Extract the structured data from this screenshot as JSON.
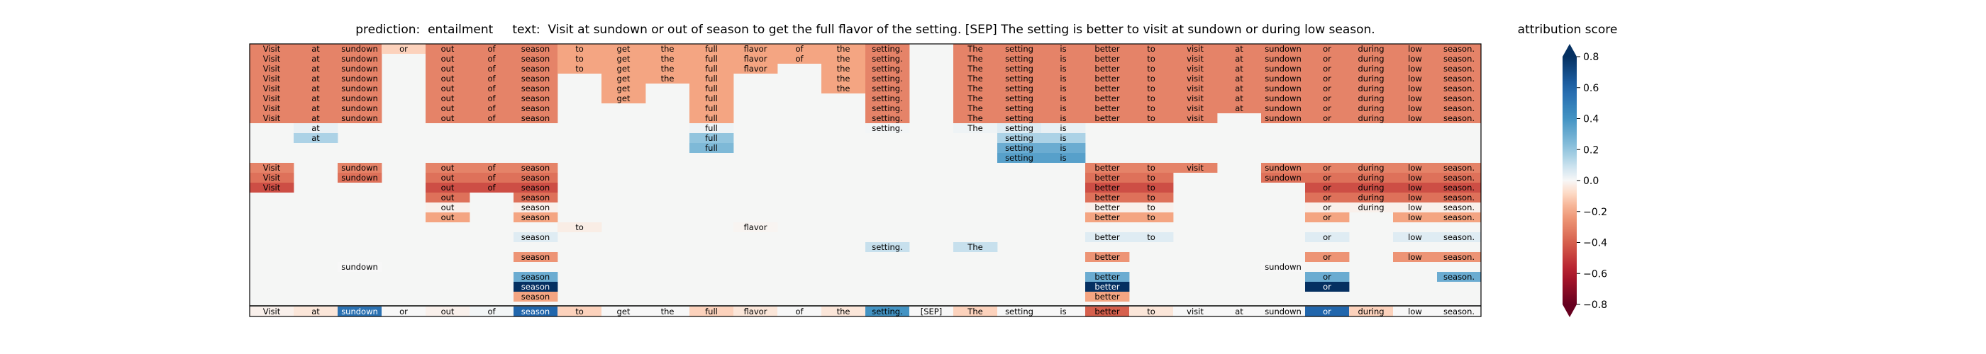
{
  "title_prefix": "prediction:  ",
  "prediction": "entailment",
  "text_prefix": "text:  ",
  "text": "Visit at sundown or out of season to get the full flavor of the setting. [SEP] The setting is better to visit at sundown or during low season.",
  "colorbar": {
    "title": "attribution score",
    "ticks": [
      "0.8",
      "0.6",
      "0.4",
      "0.2",
      "0.0",
      "−0.2",
      "−0.4",
      "−0.6",
      "−0.8"
    ],
    "range": [
      -0.8,
      0.8
    ],
    "extend": "both"
  },
  "chart_data": {
    "type": "heatmap",
    "grid": false,
    "tokens": [
      "Visit",
      "at",
      "sundown",
      "or",
      "out",
      "of",
      "season",
      "to",
      "get",
      "the",
      "full",
      "flavor",
      "of",
      "the",
      "setting.",
      "[SEP]",
      "The",
      "setting",
      "is",
      "better",
      "to",
      "visit",
      "at",
      "sundown",
      "or",
      "during",
      "low",
      "season."
    ],
    "row_values": [
      [
        -0.3,
        -0.3,
        -0.3,
        -0.1,
        -0.3,
        -0.3,
        -0.3,
        -0.2,
        -0.2,
        -0.2,
        -0.2,
        -0.2,
        -0.2,
        -0.2,
        -0.3,
        null,
        -0.3,
        -0.3,
        -0.3,
        -0.3,
        -0.3,
        -0.3,
        -0.3,
        -0.3,
        -0.3,
        -0.3,
        -0.3,
        -0.3
      ],
      [
        -0.3,
        -0.3,
        -0.3,
        null,
        -0.3,
        -0.3,
        -0.3,
        -0.2,
        -0.2,
        -0.2,
        -0.2,
        -0.2,
        -0.2,
        -0.2,
        -0.3,
        null,
        -0.3,
        -0.3,
        -0.3,
        -0.3,
        -0.3,
        -0.3,
        -0.3,
        -0.3,
        -0.3,
        -0.3,
        -0.3,
        -0.3
      ],
      [
        -0.3,
        -0.3,
        -0.3,
        null,
        -0.3,
        -0.3,
        -0.3,
        -0.2,
        -0.2,
        -0.2,
        -0.2,
        -0.2,
        null,
        -0.2,
        -0.3,
        null,
        -0.3,
        -0.3,
        -0.3,
        -0.3,
        -0.3,
        -0.3,
        -0.3,
        -0.3,
        -0.3,
        -0.3,
        -0.3,
        -0.3
      ],
      [
        -0.3,
        -0.3,
        -0.3,
        null,
        -0.3,
        -0.3,
        -0.3,
        null,
        -0.2,
        -0.2,
        -0.2,
        null,
        null,
        -0.2,
        -0.3,
        null,
        -0.3,
        -0.3,
        -0.3,
        -0.3,
        -0.3,
        -0.3,
        -0.3,
        -0.3,
        -0.3,
        -0.3,
        -0.3,
        -0.3
      ],
      [
        -0.3,
        -0.3,
        -0.3,
        null,
        -0.3,
        -0.3,
        -0.3,
        null,
        -0.2,
        null,
        -0.2,
        null,
        null,
        -0.2,
        -0.3,
        null,
        -0.3,
        -0.3,
        -0.3,
        -0.3,
        -0.3,
        -0.3,
        -0.3,
        -0.3,
        -0.3,
        -0.3,
        -0.3,
        -0.3
      ],
      [
        -0.3,
        -0.3,
        -0.3,
        null,
        -0.3,
        -0.3,
        -0.3,
        null,
        -0.2,
        null,
        -0.2,
        null,
        null,
        null,
        -0.3,
        null,
        -0.3,
        -0.3,
        -0.3,
        -0.3,
        -0.3,
        -0.3,
        -0.3,
        -0.3,
        -0.3,
        -0.3,
        -0.3,
        -0.3
      ],
      [
        -0.3,
        -0.3,
        -0.3,
        null,
        -0.3,
        -0.3,
        -0.3,
        null,
        null,
        null,
        -0.2,
        null,
        null,
        null,
        -0.3,
        null,
        -0.3,
        -0.3,
        -0.3,
        -0.3,
        -0.3,
        -0.3,
        -0.3,
        -0.3,
        -0.3,
        -0.3,
        -0.3,
        -0.3
      ],
      [
        -0.3,
        -0.3,
        -0.3,
        null,
        -0.3,
        -0.3,
        -0.3,
        null,
        null,
        null,
        -0.2,
        null,
        null,
        null,
        -0.3,
        null,
        -0.3,
        -0.3,
        -0.3,
        -0.3,
        -0.3,
        -0.3,
        null,
        -0.3,
        -0.3,
        -0.3,
        -0.3,
        -0.3
      ],
      [
        null,
        0.03,
        null,
        null,
        null,
        null,
        null,
        null,
        null,
        null,
        0.02,
        null,
        null,
        null,
        0.01,
        null,
        0.02,
        0.05,
        0.03,
        null,
        null,
        null,
        null,
        null,
        null,
        null,
        null,
        null
      ],
      [
        null,
        0.15,
        null,
        null,
        null,
        null,
        null,
        null,
        null,
        null,
        0.2,
        null,
        null,
        null,
        null,
        null,
        null,
        0.15,
        0.15,
        null,
        null,
        null,
        null,
        null,
        null,
        null,
        null,
        null
      ],
      [
        null,
        null,
        null,
        null,
        null,
        null,
        null,
        null,
        null,
        null,
        0.25,
        null,
        null,
        null,
        null,
        null,
        null,
        0.3,
        0.3,
        null,
        null,
        null,
        null,
        null,
        null,
        null,
        null,
        null
      ],
      [
        null,
        null,
        null,
        null,
        null,
        null,
        null,
        null,
        null,
        null,
        null,
        null,
        null,
        null,
        null,
        null,
        null,
        0.35,
        0.35,
        null,
        null,
        null,
        null,
        null,
        null,
        null,
        null,
        null
      ],
      [
        -0.3,
        null,
        -0.3,
        null,
        -0.3,
        -0.3,
        -0.3,
        null,
        null,
        null,
        null,
        null,
        null,
        null,
        null,
        null,
        null,
        null,
        null,
        -0.3,
        -0.3,
        -0.3,
        null,
        -0.3,
        -0.3,
        -0.3,
        -0.3,
        -0.3
      ],
      [
        -0.35,
        null,
        -0.35,
        null,
        -0.35,
        -0.35,
        -0.35,
        null,
        null,
        null,
        null,
        null,
        null,
        null,
        null,
        null,
        null,
        null,
        null,
        -0.35,
        -0.35,
        null,
        null,
        -0.35,
        -0.35,
        -0.35,
        -0.35,
        -0.35
      ],
      [
        -0.45,
        null,
        null,
        null,
        -0.45,
        -0.45,
        -0.45,
        null,
        null,
        null,
        null,
        null,
        null,
        null,
        null,
        null,
        null,
        null,
        null,
        -0.45,
        -0.45,
        null,
        null,
        null,
        -0.45,
        -0.45,
        -0.45,
        -0.45
      ],
      [
        null,
        null,
        null,
        null,
        -0.35,
        null,
        -0.35,
        null,
        null,
        null,
        null,
        null,
        null,
        null,
        null,
        null,
        null,
        null,
        null,
        -0.35,
        -0.35,
        null,
        null,
        null,
        -0.35,
        -0.35,
        -0.35,
        -0.35
      ],
      [
        null,
        null,
        null,
        null,
        -0.02,
        null,
        -0.02,
        null,
        null,
        null,
        null,
        null,
        null,
        null,
        null,
        null,
        null,
        null,
        null,
        -0.02,
        -0.02,
        null,
        null,
        null,
        -0.02,
        -0.02,
        -0.02,
        -0.02
      ],
      [
        null,
        null,
        null,
        null,
        -0.2,
        null,
        -0.2,
        null,
        null,
        null,
        null,
        null,
        null,
        null,
        null,
        null,
        null,
        null,
        null,
        -0.2,
        -0.2,
        null,
        null,
        null,
        -0.2,
        null,
        -0.2,
        -0.2
      ],
      [
        null,
        null,
        null,
        null,
        null,
        null,
        null,
        -0.03,
        null,
        null,
        null,
        -0.01,
        null,
        null,
        null,
        null,
        null,
        null,
        null,
        null,
        null,
        null,
        null,
        null,
        null,
        null,
        null,
        null
      ],
      [
        null,
        null,
        null,
        null,
        null,
        null,
        0.05,
        null,
        null,
        null,
        null,
        null,
        null,
        null,
        null,
        null,
        null,
        null,
        null,
        0.05,
        0.05,
        null,
        null,
        null,
        0.05,
        null,
        0.05,
        0.05
      ],
      [
        null,
        null,
        null,
        null,
        null,
        null,
        null,
        null,
        null,
        null,
        null,
        null,
        null,
        null,
        0.1,
        null,
        0.1,
        null,
        null,
        null,
        null,
        null,
        null,
        null,
        null,
        null,
        null,
        null
      ],
      [
        null,
        null,
        null,
        null,
        null,
        null,
        -0.25,
        null,
        null,
        null,
        null,
        null,
        null,
        null,
        null,
        null,
        null,
        null,
        null,
        -0.25,
        null,
        null,
        null,
        null,
        -0.25,
        null,
        -0.25,
        -0.25
      ],
      [
        null,
        null,
        0.0,
        null,
        null,
        null,
        null,
        null,
        null,
        null,
        null,
        null,
        null,
        null,
        null,
        null,
        null,
        null,
        null,
        null,
        null,
        null,
        null,
        0.0,
        null,
        null,
        null,
        null
      ],
      [
        null,
        null,
        null,
        null,
        null,
        null,
        0.3,
        null,
        null,
        null,
        null,
        null,
        null,
        null,
        null,
        null,
        null,
        null,
        null,
        0.3,
        null,
        null,
        null,
        null,
        0.3,
        null,
        null,
        0.3
      ],
      [
        null,
        null,
        null,
        null,
        null,
        null,
        0.9,
        null,
        null,
        null,
        null,
        null,
        null,
        null,
        null,
        null,
        null,
        null,
        null,
        0.9,
        null,
        null,
        null,
        null,
        0.9,
        null,
        null,
        null
      ],
      [
        null,
        null,
        null,
        null,
        null,
        null,
        -0.2,
        null,
        null,
        null,
        null,
        null,
        null,
        null,
        null,
        null,
        null,
        null,
        null,
        -0.2,
        null,
        null,
        null,
        null,
        null,
        null,
        null,
        null
      ]
    ],
    "summary_values": [
      -0.02,
      -0.05,
      0.55,
      0.0,
      -0.02,
      0.01,
      0.6,
      -0.1,
      0.0,
      0.0,
      -0.1,
      -0.05,
      0.0,
      -0.05,
      0.4,
      0.0,
      -0.1,
      0.0,
      0.0,
      -0.4,
      -0.05,
      0.0,
      0.0,
      0.0,
      0.6,
      -0.1,
      0.0,
      0.0
    ]
  }
}
